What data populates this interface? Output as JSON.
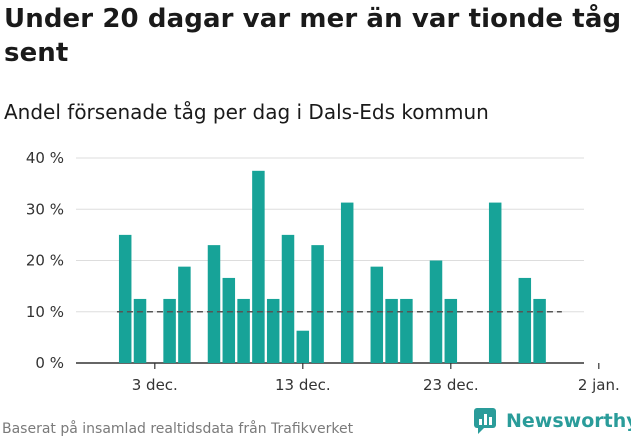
{
  "title": "Under 20 dagar var mer än var tionde tåg sent",
  "subtitle": "Andel försenade tåg per dag i Dals-Eds kommun",
  "source": "Baserat på insamlad realtidsdata från Trafikverket",
  "brand": "Newsworthy",
  "colors": {
    "bar": "#17a398",
    "reference_line": "#555555",
    "grid": "#dddddd",
    "brand": "#2a9c9a"
  },
  "chart_data": {
    "type": "bar",
    "x_start": "2023-11-30",
    "x": [
      "2023-11-30",
      "2023-12-01",
      "2023-12-02",
      "2023-12-03",
      "2023-12-04",
      "2023-12-05",
      "2023-12-06",
      "2023-12-07",
      "2023-12-08",
      "2023-12-09",
      "2023-12-10",
      "2023-12-11",
      "2023-12-12",
      "2023-12-13",
      "2023-12-14",
      "2023-12-15",
      "2023-12-16",
      "2023-12-17",
      "2023-12-18",
      "2023-12-19",
      "2023-12-20",
      "2023-12-21",
      "2023-12-22",
      "2023-12-23",
      "2023-12-24",
      "2023-12-25",
      "2023-12-26",
      "2023-12-27",
      "2023-12-28",
      "2023-12-29",
      "2023-12-30",
      "2023-12-31"
    ],
    "values": [
      null,
      25,
      12.5,
      null,
      12.5,
      18.8,
      null,
      23,
      16.6,
      12.5,
      37.5,
      12.5,
      25,
      6.3,
      23,
      null,
      31.3,
      null,
      18.8,
      12.5,
      12.5,
      null,
      20,
      12.5,
      null,
      null,
      31.3,
      null,
      16.6,
      12.5,
      null,
      null
    ],
    "reference_line": 10,
    "ylim": [
      0,
      40
    ],
    "yticks": [
      0,
      10,
      20,
      30,
      40
    ],
    "ytick_labels": [
      "0 %",
      "10 %",
      "20 %",
      "30 %",
      "40 %"
    ],
    "xtick_dates": [
      "2023-12-03",
      "2023-12-13",
      "2023-12-23",
      "2024-01-02"
    ],
    "xtick_labels": [
      "3 dec.",
      "13 dec.",
      "23 dec.",
      "2 jan."
    ],
    "grid": true,
    "xlabel": "",
    "ylabel": ""
  }
}
